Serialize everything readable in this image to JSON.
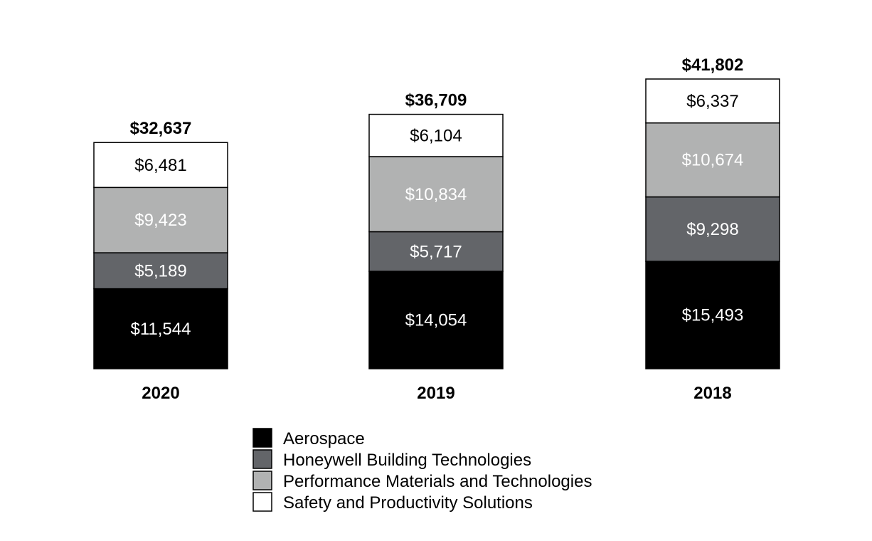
{
  "chart_data": {
    "type": "bar",
    "stacked": true,
    "categories": [
      "2020",
      "2019",
      "2018"
    ],
    "totals": [
      "$32,637",
      "$36,709",
      "$41,802"
    ],
    "series": [
      {
        "name": "Aerospace",
        "color": "#000000",
        "label_color": "#ffffff",
        "values": [
          11544,
          14054,
          15493
        ],
        "labels": [
          "$11,544",
          "$14,054",
          "$15,493"
        ]
      },
      {
        "name": "Honeywell Building Technologies",
        "color": "#636569",
        "label_color": "#ffffff",
        "values": [
          5189,
          5717,
          9298
        ],
        "labels": [
          "$5,189",
          "$5,717",
          "$9,298"
        ]
      },
      {
        "name": "Performance Materials and Technologies",
        "color": "#b1b2b2",
        "label_color": "#ffffff",
        "values": [
          9423,
          10834,
          10674
        ],
        "labels": [
          "$9,423",
          "$10,834",
          "$10,674"
        ]
      },
      {
        "name": "Safety and Productivity Solutions",
        "color": "#ffffff",
        "label_color": "#000000",
        "values": [
          6481,
          6104,
          6337
        ],
        "labels": [
          "$6,481",
          "$6,104",
          "$6,337"
        ]
      }
    ],
    "legend_position": "bottom",
    "grid": false,
    "ylim": [
      0,
      41802
    ]
  }
}
